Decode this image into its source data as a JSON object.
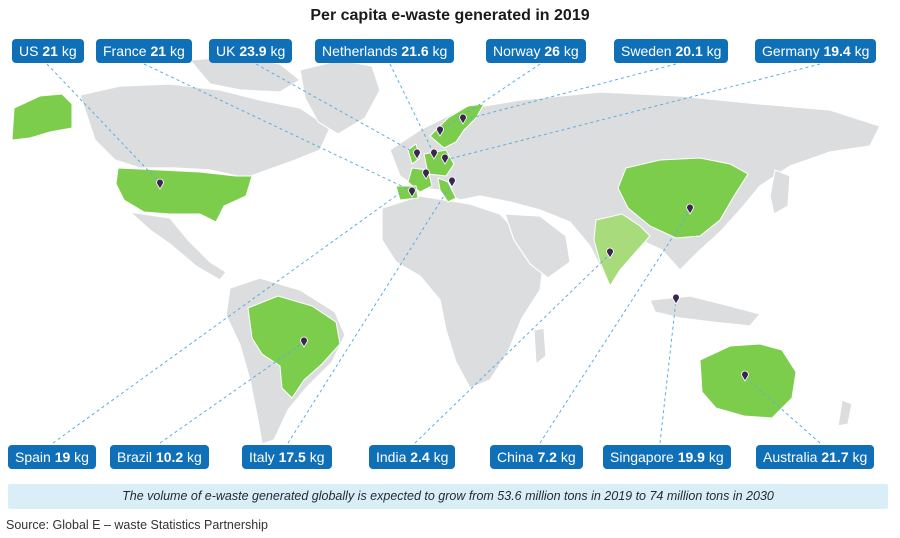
{
  "title": "Per capita e-waste generated in 2019",
  "unit": "kg",
  "colors": {
    "badge": "#0f70b7",
    "land": "#dcdddf",
    "highlight": "#7dcd4c",
    "highlight_light": "#a8db7c",
    "pin": "#3b2650",
    "note_bg": "#d9eef7"
  },
  "countries": [
    {
      "name": "US",
      "value": "21"
    },
    {
      "name": "France",
      "value": "21"
    },
    {
      "name": "UK",
      "value": "23.9"
    },
    {
      "name": "Netherlands",
      "value": "21.6"
    },
    {
      "name": "Norway",
      "value": "26"
    },
    {
      "name": "Sweden",
      "value": "20.1"
    },
    {
      "name": "Germany",
      "value": "19.4"
    },
    {
      "name": "Spain",
      "value": "19"
    },
    {
      "name": "Brazil",
      "value": "10.2"
    },
    {
      "name": "Italy",
      "value": "17.5"
    },
    {
      "name": "India",
      "value": "2.4"
    },
    {
      "name": "China",
      "value": "7.2"
    },
    {
      "name": "Singapore",
      "value": "19.9"
    },
    {
      "name": "Australia",
      "value": "21.7"
    }
  ],
  "note": "The volume of e-waste generated globally is expected to grow from 53.6 million tons in 2019 to 74 million tons in 2030",
  "source": "Source: Global E – waste Statistics Partnership"
}
